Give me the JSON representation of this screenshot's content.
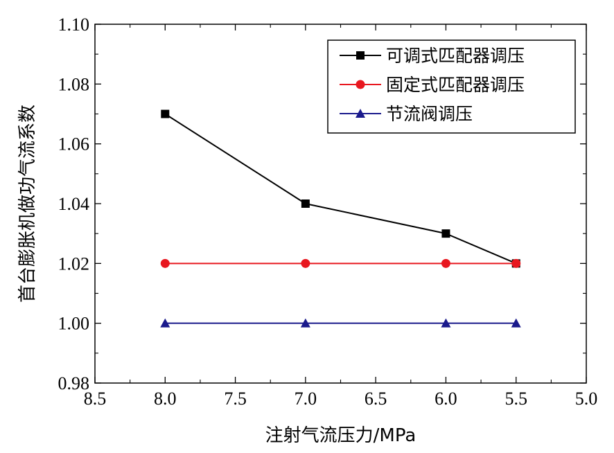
{
  "chart_data": {
    "type": "line",
    "xlabel": "注射气流压力/MPa",
    "ylabel": "首台膨胀机做功气流系数",
    "xlim": [
      8.5,
      5.0
    ],
    "ylim": [
      0.98,
      1.1
    ],
    "x_reversed": true,
    "x_ticks": [
      "8.5",
      "8.0",
      "7.5",
      "7.0",
      "6.5",
      "6.0",
      "5.5",
      "5.0"
    ],
    "x_tick_values": [
      8.5,
      8.0,
      7.5,
      7.0,
      6.5,
      6.0,
      5.5,
      5.0
    ],
    "y_ticks": [
      "0.98",
      "1.00",
      "1.02",
      "1.04",
      "1.06",
      "1.08",
      "1.10"
    ],
    "y_tick_values": [
      0.98,
      1.0,
      1.02,
      1.04,
      1.06,
      1.08,
      1.1
    ],
    "grid": false,
    "legend_position": "top-right",
    "x": [
      8.0,
      7.0,
      6.0,
      5.5
    ],
    "series": [
      {
        "name": "可调式匹配器调压",
        "values": [
          1.07,
          1.04,
          1.03,
          1.02
        ],
        "color": "#000000",
        "marker": "square"
      },
      {
        "name": "固定式匹配器调压",
        "values": [
          1.02,
          1.02,
          1.02,
          1.02
        ],
        "color": "#e8171f",
        "marker": "circle"
      },
      {
        "name": "节流阀调压",
        "values": [
          1.0,
          1.0,
          1.0,
          1.0
        ],
        "color": "#1a1a8c",
        "marker": "triangle"
      }
    ]
  }
}
